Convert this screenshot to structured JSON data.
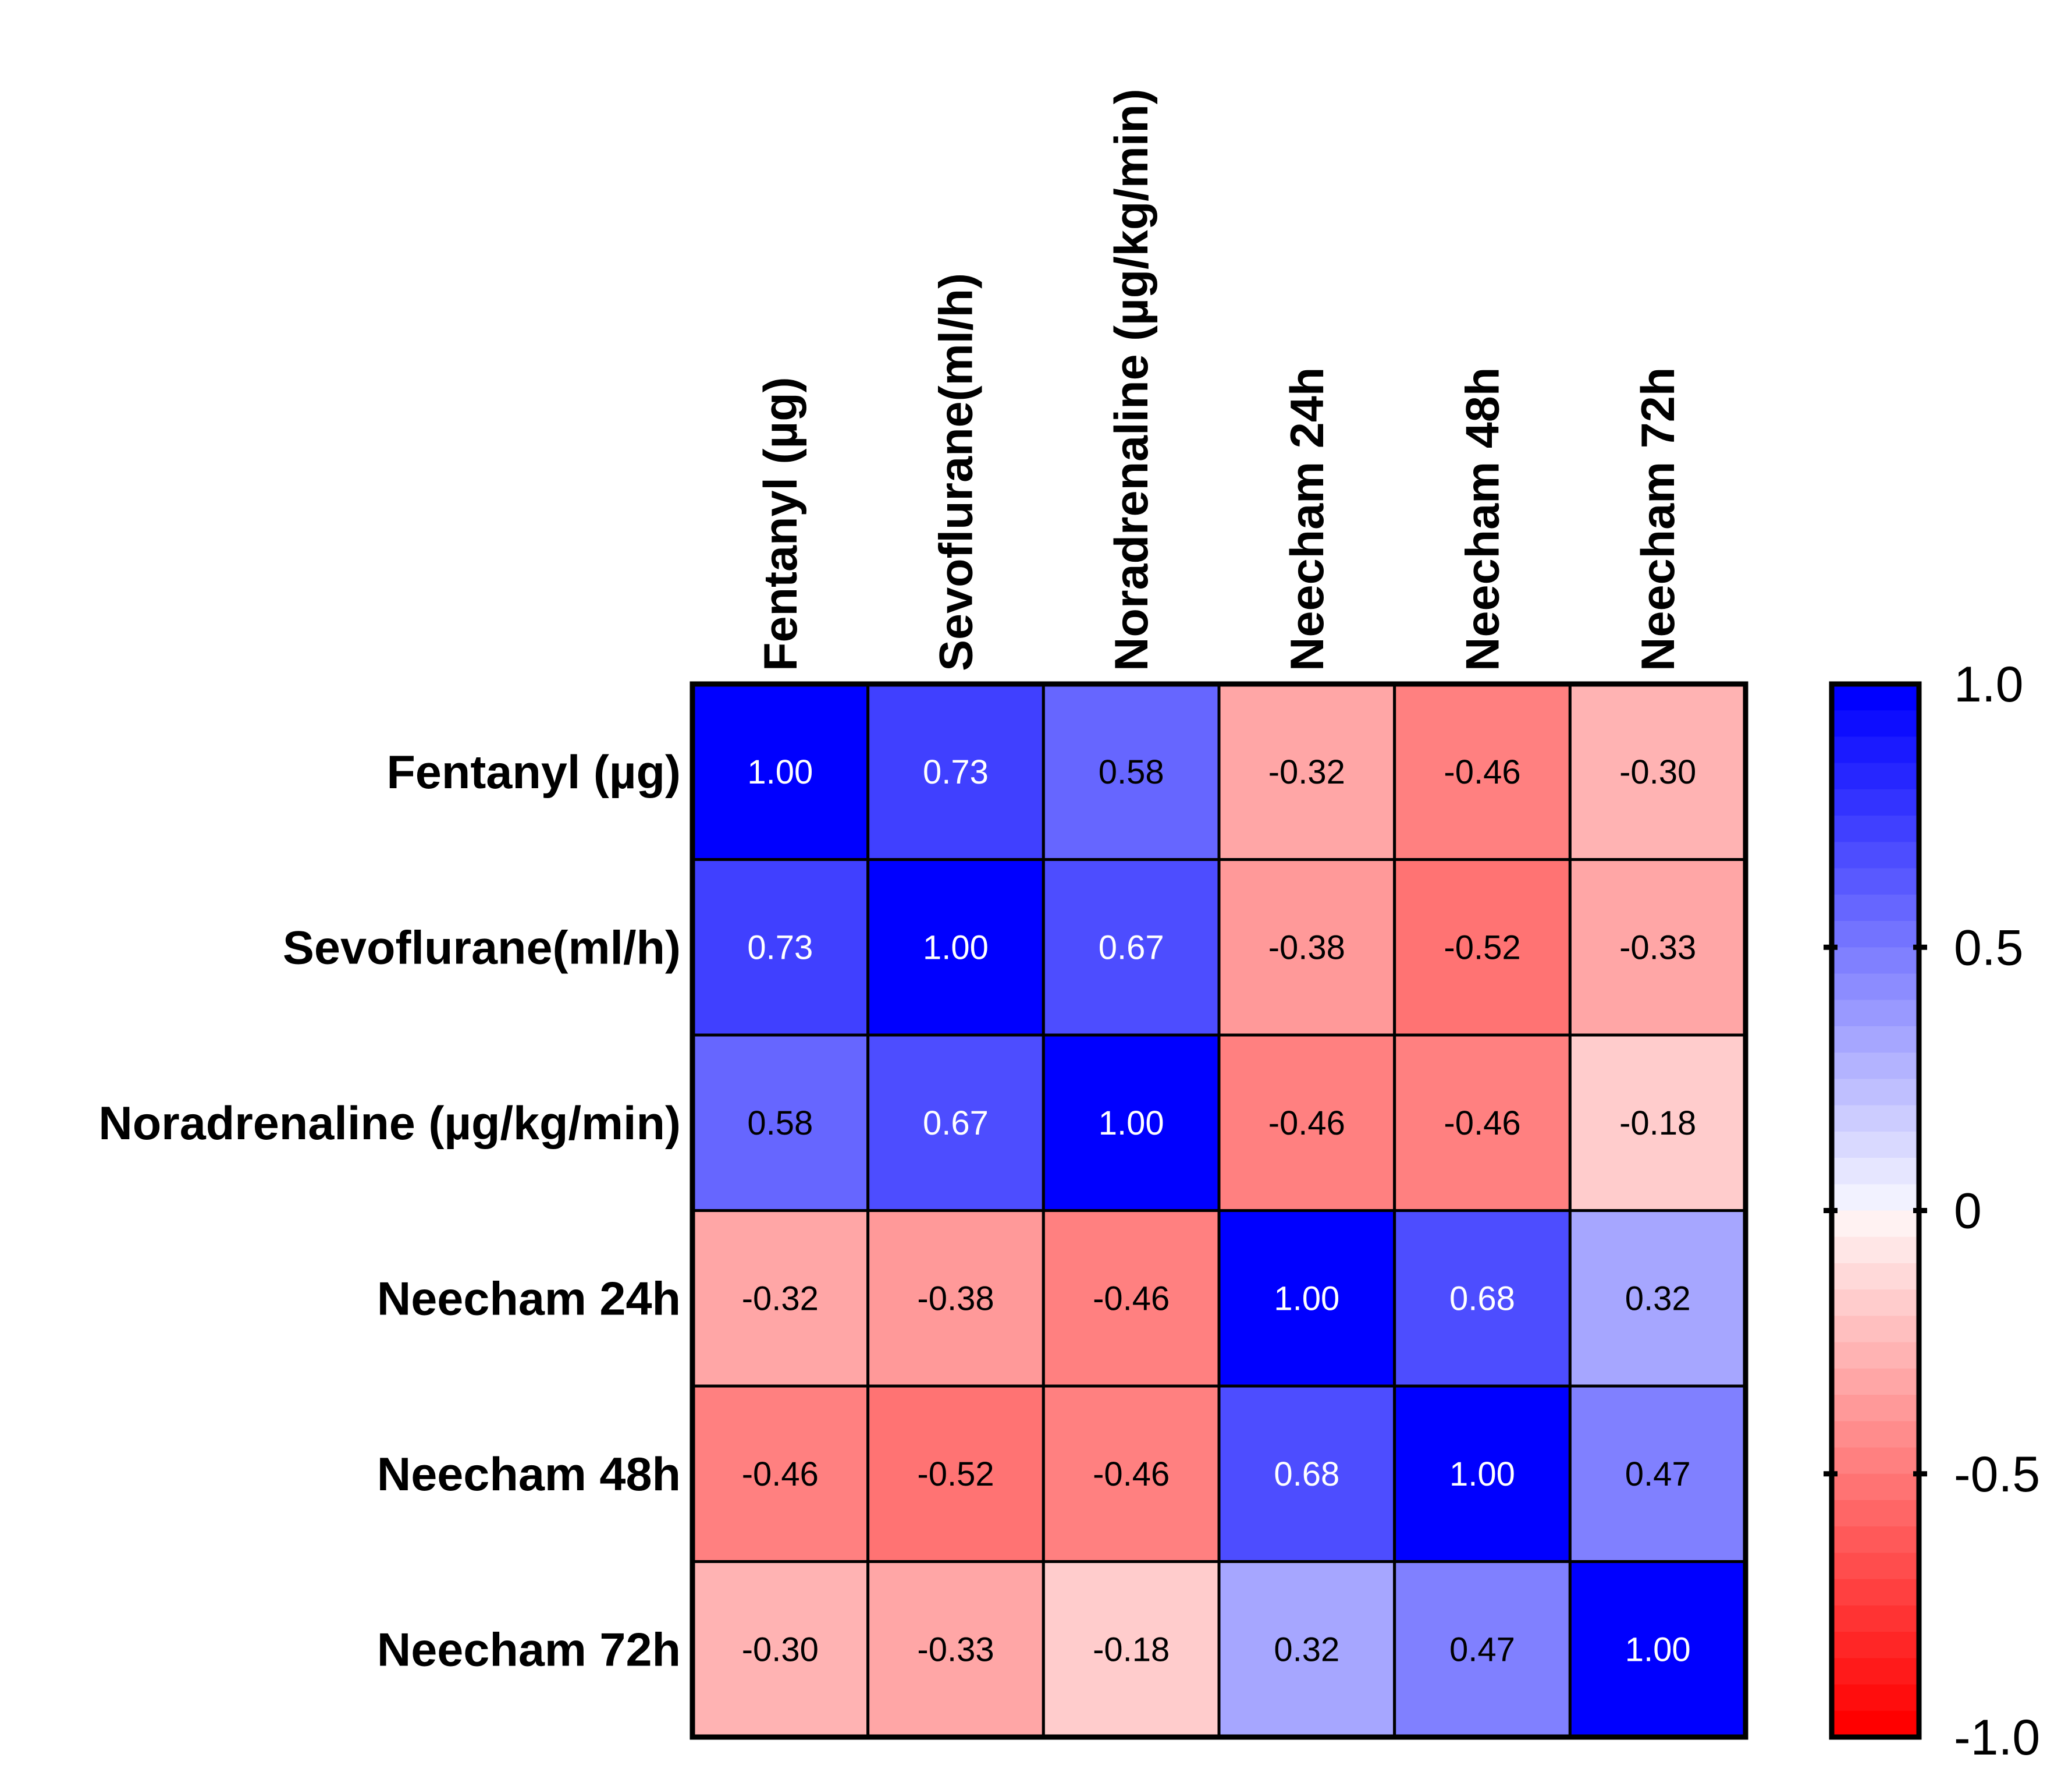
{
  "chart_data": {
    "type": "heatmap",
    "title": "",
    "row_labels": [
      "Fentanyl (µg)",
      "Sevoflurane(ml/h)",
      "Noradrenaline (µg/kg/min)",
      "Neecham 24h",
      "Neecham 48h",
      "Neecham 72h"
    ],
    "column_labels": [
      "Fentanyl (µg)",
      "Sevoflurane(ml/h)",
      "Noradrenaline (µg/kg/min)",
      "Neecham 24h",
      "Neecham 48h",
      "Neecham 72h"
    ],
    "values": [
      [
        1.0,
        0.73,
        0.58,
        -0.32,
        -0.46,
        -0.3
      ],
      [
        0.73,
        1.0,
        0.67,
        -0.38,
        -0.52,
        -0.33
      ],
      [
        0.58,
        0.67,
        1.0,
        -0.46,
        -0.46,
        -0.18
      ],
      [
        -0.32,
        -0.38,
        -0.46,
        1.0,
        0.68,
        0.32
      ],
      [
        -0.46,
        -0.52,
        -0.46,
        0.68,
        1.0,
        0.47
      ],
      [
        -0.3,
        -0.33,
        -0.18,
        0.32,
        0.47,
        1.0
      ]
    ],
    "cell_labels": [
      [
        "1.00",
        "0.73",
        "0.58",
        "-0.32",
        "-0.46",
        "-0.30"
      ],
      [
        "0.73",
        "1.00",
        "0.67",
        "-0.38",
        "-0.52",
        "-0.33"
      ],
      [
        "0.58",
        "0.67",
        "1.00",
        "-0.46",
        "-0.46",
        "-0.18"
      ],
      [
        "-0.32",
        "-0.38",
        "-0.46",
        "1.00",
        "0.68",
        "0.32"
      ],
      [
        "-0.46",
        "-0.52",
        "-0.46",
        "0.68",
        "1.00",
        "0.47"
      ],
      [
        "-0.30",
        "-0.33",
        "-0.18",
        "0.32",
        "0.47",
        "1.00"
      ]
    ],
    "colorbar": {
      "range": [
        -1.0,
        1.0
      ],
      "ticks": [
        1.0,
        0.5,
        0,
        -0.5,
        -1.0
      ],
      "tick_labels": [
        "1.0",
        "0.5",
        "0",
        "-0.5",
        "-1.0"
      ],
      "steps": 40,
      "positive_color": "#0000ff",
      "negative_color": "#ff0000",
      "neutral_color": "#ffffff"
    }
  }
}
